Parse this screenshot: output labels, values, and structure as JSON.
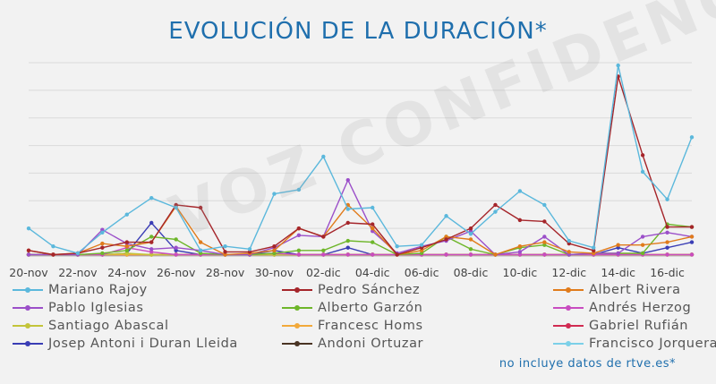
{
  "title": "EVOLUCIÓN DE LA DURACIÓN*",
  "footnote": "no incluye datos de rtve.es*",
  "watermark": "VOZ CONFIDENCIAL",
  "chart_data": {
    "type": "line",
    "title": "EVOLUCIÓN DE LA DURACIÓN*",
    "xlabel": "",
    "ylabel": "",
    "grid": true,
    "legend_position": "bottom",
    "ylim": [
      0,
      7
    ],
    "x": [
      "20-nov",
      "21-nov",
      "22-nov",
      "23-nov",
      "24-nov",
      "25-nov",
      "26-nov",
      "27-nov",
      "28-nov",
      "29-nov",
      "30-nov",
      "01-dic",
      "02-dic",
      "03-dic",
      "04-dic",
      "05-dic",
      "06-dic",
      "07-dic",
      "08-dic",
      "09-dic",
      "10-dic",
      "11-dic",
      "12-dic",
      "13-dic",
      "14-dic",
      "15-dic",
      "16-dic",
      "17-dic"
    ],
    "x_tick_labels": [
      "20-nov",
      "22-nov",
      "24-nov",
      "26-nov",
      "28-nov",
      "30-nov",
      "02-dic",
      "04-dic",
      "06-dic",
      "08-dic",
      "10-dic",
      "12-dic",
      "14-dic",
      "16-dic"
    ],
    "series": [
      {
        "name": "Mariano Rajoy",
        "color": "#5bb8dc",
        "values": [
          1.0,
          0.35,
          0.1,
          0.85,
          1.5,
          2.1,
          1.75,
          0.2,
          0.35,
          0.25,
          2.25,
          2.4,
          3.6,
          1.7,
          1.75,
          0.35,
          0.4,
          1.45,
          0.8,
          1.6,
          2.35,
          1.85,
          0.55,
          0.3,
          6.9,
          3.05,
          2.05,
          4.3
        ]
      },
      {
        "name": "Pedro Sánchez",
        "color": "#a5252a",
        "values": [
          0.2,
          0.05,
          0.1,
          0.3,
          0.5,
          0.5,
          1.85,
          1.75,
          0.15,
          0.15,
          0.35,
          1.0,
          0.7,
          1.2,
          1.15,
          0.05,
          0.3,
          0.6,
          1.0,
          1.85,
          1.3,
          1.25,
          0.45,
          0.2,
          6.5,
          3.65,
          1.05,
          1.05
        ]
      },
      {
        "name": "Albert Rivera",
        "color": "#e07b1b",
        "values": [
          0.2,
          0.05,
          0.1,
          0.45,
          0.35,
          0.5,
          1.8,
          0.5,
          0.05,
          0.1,
          0.2,
          1.0,
          0.7,
          1.85,
          1.0,
          0.05,
          0.2,
          0.7,
          0.6,
          0.05,
          0.35,
          0.5,
          0.15,
          0.1,
          0.4,
          0.4,
          0.5,
          0.7
        ]
      },
      {
        "name": "Pablo Iglesias",
        "color": "#9b4fc9",
        "values": [
          0.05,
          0.05,
          0.05,
          0.95,
          0.45,
          0.25,
          0.3,
          0.2,
          0.05,
          0.05,
          0.3,
          0.75,
          0.7,
          2.75,
          0.9,
          0.1,
          0.35,
          0.55,
          0.9,
          0.05,
          0.15,
          0.7,
          0.05,
          0.1,
          0.1,
          0.7,
          0.85,
          0.7
        ]
      },
      {
        "name": "Alberto Garzón",
        "color": "#6eb62a",
        "values": [
          0.05,
          0.05,
          0.05,
          0.1,
          0.2,
          0.7,
          0.6,
          0.1,
          0.05,
          0.05,
          0.1,
          0.2,
          0.2,
          0.55,
          0.5,
          0.05,
          0.1,
          0.7,
          0.25,
          0.05,
          0.3,
          0.4,
          0.05,
          0.1,
          0.1,
          0.1,
          1.15,
          1.05
        ]
      },
      {
        "name": "Andrés Herzog",
        "color": "#c94cc0",
        "values": [
          0.05,
          0.05,
          0.05,
          0.05,
          0.3,
          0.15,
          0.05,
          0.05,
          0.05,
          0.05,
          0.1,
          0.05,
          0.05,
          0.05,
          0.05,
          0.05,
          0.05,
          0.05,
          0.05,
          0.05,
          0.05,
          0.05,
          0.05,
          0.05,
          0.05,
          0.05,
          0.05,
          0.05
        ]
      },
      {
        "name": "Santiago Abascal",
        "color": "#c3c43a",
        "values": [
          0.05,
          0.05,
          0.05,
          0.05,
          0.1,
          0.05,
          0.05,
          0.05,
          0.05,
          0.05,
          0.05,
          0.05,
          0.05,
          0.05,
          0.05,
          0.05,
          0.05,
          0.05,
          0.05,
          0.05,
          0.05,
          0.05,
          0.05,
          0.05,
          0.05,
          0.05,
          0.05,
          0.05
        ]
      },
      {
        "name": "Francesc Homs",
        "color": "#f2a93b",
        "values": [
          0.05,
          0.05,
          0.05,
          0.05,
          0.05,
          0.05,
          0.05,
          0.05,
          0.05,
          0.05,
          0.05,
          0.05,
          0.05,
          0.05,
          0.05,
          0.05,
          0.05,
          0.05,
          0.05,
          0.05,
          0.05,
          0.05,
          0.05,
          0.05,
          0.05,
          0.05,
          0.05,
          0.05
        ]
      },
      {
        "name": "Gabriel Rufián",
        "color": "#d12b52",
        "values": [
          0.05,
          0.05,
          0.05,
          0.05,
          0.05,
          0.05,
          0.05,
          0.05,
          0.05,
          0.05,
          0.05,
          0.05,
          0.05,
          0.05,
          0.05,
          0.05,
          0.05,
          0.05,
          0.05,
          0.05,
          0.05,
          0.05,
          0.05,
          0.05,
          0.05,
          0.05,
          0.05,
          0.05
        ]
      },
      {
        "name": "Josep Antoni i Duran Lleida",
        "color": "#3a3db5",
        "values": [
          0.05,
          0.05,
          0.05,
          0.05,
          0.1,
          1.2,
          0.2,
          0.05,
          0.05,
          0.05,
          0.2,
          0.05,
          0.05,
          0.3,
          0.05,
          0.05,
          0.05,
          0.05,
          0.05,
          0.05,
          0.05,
          0.05,
          0.05,
          0.05,
          0.3,
          0.1,
          0.3,
          0.5
        ]
      },
      {
        "name": "Andoni Ortuzar",
        "color": "#4a3424",
        "values": [
          0.05,
          0.05,
          0.05,
          0.05,
          0.05,
          0.05,
          0.05,
          0.05,
          0.05,
          0.05,
          0.05,
          0.05,
          0.05,
          0.05,
          0.05,
          0.05,
          0.05,
          0.05,
          0.05,
          0.05,
          0.05,
          0.05,
          0.05,
          0.05,
          0.05,
          0.05,
          0.05,
          0.05
        ]
      },
      {
        "name": "Francisco Jorquera",
        "color": "#7cd0e8",
        "values": [
          0.05,
          0.05,
          0.05,
          0.05,
          0.05,
          0.05,
          0.05,
          0.05,
          0.05,
          0.05,
          0.05,
          0.05,
          0.05,
          0.05,
          0.05,
          0.05,
          0.05,
          0.05,
          0.05,
          0.05,
          0.05,
          0.05,
          0.05,
          0.05,
          0.05,
          0.05,
          0.05,
          0.05
        ]
      }
    ]
  }
}
